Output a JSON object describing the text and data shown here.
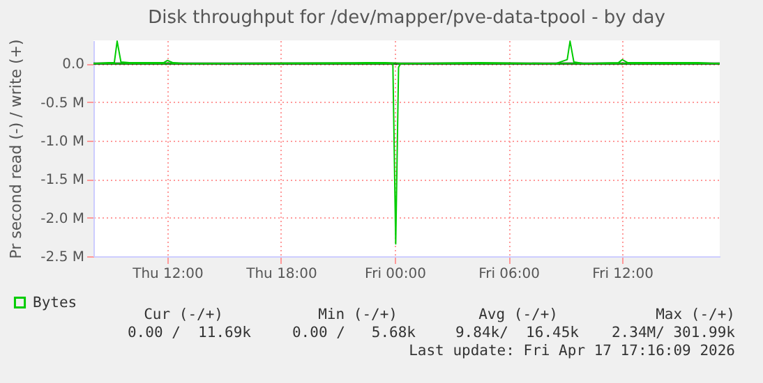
{
  "chart_data": {
    "type": "line",
    "title": "Disk throughput for /dev/mapper/pve-data-tpool - by day",
    "ylabel": "Pr second read (-) / write (+)",
    "xlim": [
      "2026-04-16T08:06",
      "2026-04-17T17:09"
    ],
    "xticks": [
      {
        "value": "2026-04-16T12:00",
        "label": "Thu 12:00"
      },
      {
        "value": "2026-04-16T18:00",
        "label": "Thu 18:00"
      },
      {
        "value": "2026-04-17T00:00",
        "label": "Fri 00:00"
      },
      {
        "value": "2026-04-17T06:00",
        "label": "Fri 06:00"
      },
      {
        "value": "2026-04-17T12:00",
        "label": "Fri 12:00"
      }
    ],
    "ylim": [
      -2.5,
      0.3
    ],
    "yticks": [
      {
        "value": 0,
        "label": "0.0"
      },
      {
        "value": -0.5,
        "label": "-0.5 M"
      },
      {
        "value": -1,
        "label": "-1.0 M"
      },
      {
        "value": -1.5,
        "label": "-1.5 M"
      },
      {
        "value": -2,
        "label": "-2.0 M"
      },
      {
        "value": -2.5,
        "label": "-2.5 M"
      }
    ],
    "grid": true,
    "legend": "bottom left",
    "ref_lines": [
      {
        "axis": "y",
        "value": 0,
        "color": "#000000"
      }
    ],
    "series": [
      {
        "name": "Bytes",
        "color": "#00cc00",
        "x": [
          "2026-04-16T08:06",
          "2026-04-16T23:54",
          "2026-04-17T00:03",
          "2026-04-17T00:12",
          "2026-04-17T00:18",
          "2026-04-17T17:09"
        ],
        "values": [
          0,
          0,
          -2.34,
          -0.05,
          0,
          0
        ]
      },
      {
        "color": "#00cc00",
        "x": [
          "2026-04-16T08:06",
          "2026-04-16T08:54",
          "2026-04-16T09:12",
          "2026-04-16T09:21",
          "2026-04-16T09:33",
          "2026-04-16T10:00",
          "2026-04-16T11:48",
          "2026-04-16T12:00",
          "2026-04-16T12:18",
          "2026-04-16T13:00",
          "2026-04-16T22:30",
          "2026-04-16T23:30",
          "2026-04-17T00:30",
          "2026-04-17T04:30",
          "2026-04-17T08:30",
          "2026-04-17T09:06",
          "2026-04-17T09:15",
          "2026-04-17T09:27",
          "2026-04-17T10:00",
          "2026-04-17T11:48",
          "2026-04-17T12:00",
          "2026-04-17T12:18",
          "2026-04-17T13:00",
          "2026-04-17T16:00",
          "2026-04-17T17:09"
        ],
        "values": [
          0,
          0.01,
          0.01,
          0.29,
          0.02,
          0.01,
          0.01,
          0.04,
          0.01,
          0,
          0.01,
          0.01,
          0,
          0.01,
          0,
          0.05,
          0.29,
          0.02,
          0,
          0.01,
          0.05,
          0.01,
          0.01,
          0.01,
          0
        ]
      }
    ],
    "annotations": [
      "Cur (-/+)",
      "Min (-/+)",
      "Avg (-/+)",
      "Max (-/+)",
      "0.00 /  11.69k",
      "0.00 /   5.68k",
      "9.84k/  16.45k",
      "2.34M/ 301.99k",
      "Last update: Fri Apr 17 17:16:09 2026"
    ]
  }
}
